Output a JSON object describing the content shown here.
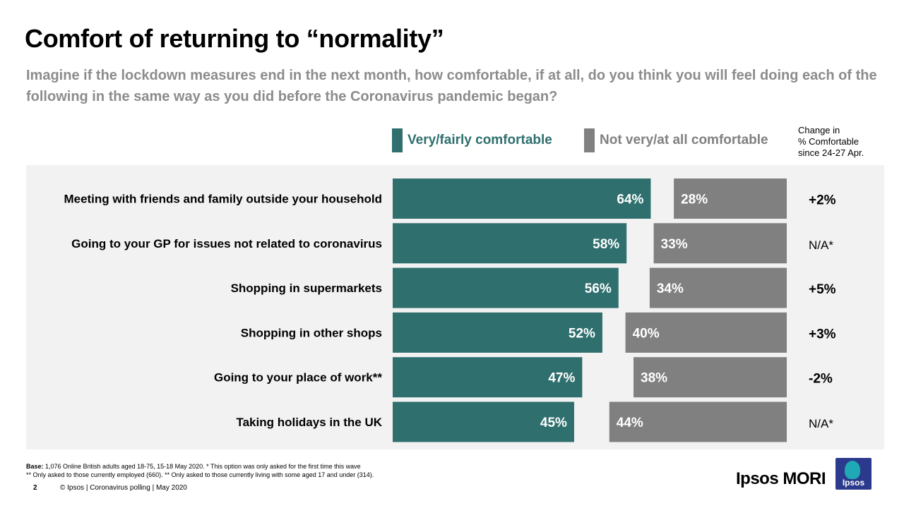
{
  "page": {
    "title": "Comfort of returning to “normality”",
    "question": "Imagine if the lockdown measures end in the next month, how comfortable, if at all, do you think you will feel doing each of the following in the same way as you did before the Coronavirus pandemic began?",
    "change_header": [
      "Change in",
      "% Comfortable",
      "since 24-27 Apr."
    ],
    "footer": {
      "base_label": "Base:",
      "base_text": " 1,076 Online British adults aged 18-75, 15-18 May 2020. * This option was only asked for the first time this wave",
      "note2": "** Only asked to those currently employed (660). ** Only asked to those currently living with some aged 17 and under (314).",
      "page_number": "2",
      "copyright": "© Ipsos | Coronavirus polling | May 2020",
      "brand": "Ipsos MORI",
      "logo_text": "Ipsos"
    },
    "colors": {
      "comfortable": "#2f6f6e",
      "not_comfortable": "#808080",
      "panel": "#f2f2f2"
    }
  },
  "chart_data": {
    "type": "bar",
    "orientation": "horizontal",
    "categories": [
      "Meeting with friends and family outside your household",
      "Going to your GP for issues not related to coronavirus",
      "Shopping in supermarkets",
      "Shopping in other shops",
      "Going to your place of work**",
      "Taking holidays in the UK"
    ],
    "series": [
      {
        "name": "Very/fairly  comfortable",
        "color": "#2f6f6e",
        "values": [
          64,
          58,
          56,
          52,
          47,
          45
        ]
      },
      {
        "name": "Not very/at all comfortable",
        "color": "#808080",
        "values": [
          28,
          33,
          34,
          40,
          38,
          44
        ]
      }
    ],
    "change": [
      "+2%",
      "N/A*",
      "+5%",
      "+3%",
      "-2%",
      "N/A*"
    ],
    "value_suffix": "%",
    "xlim": [
      0,
      100
    ]
  }
}
